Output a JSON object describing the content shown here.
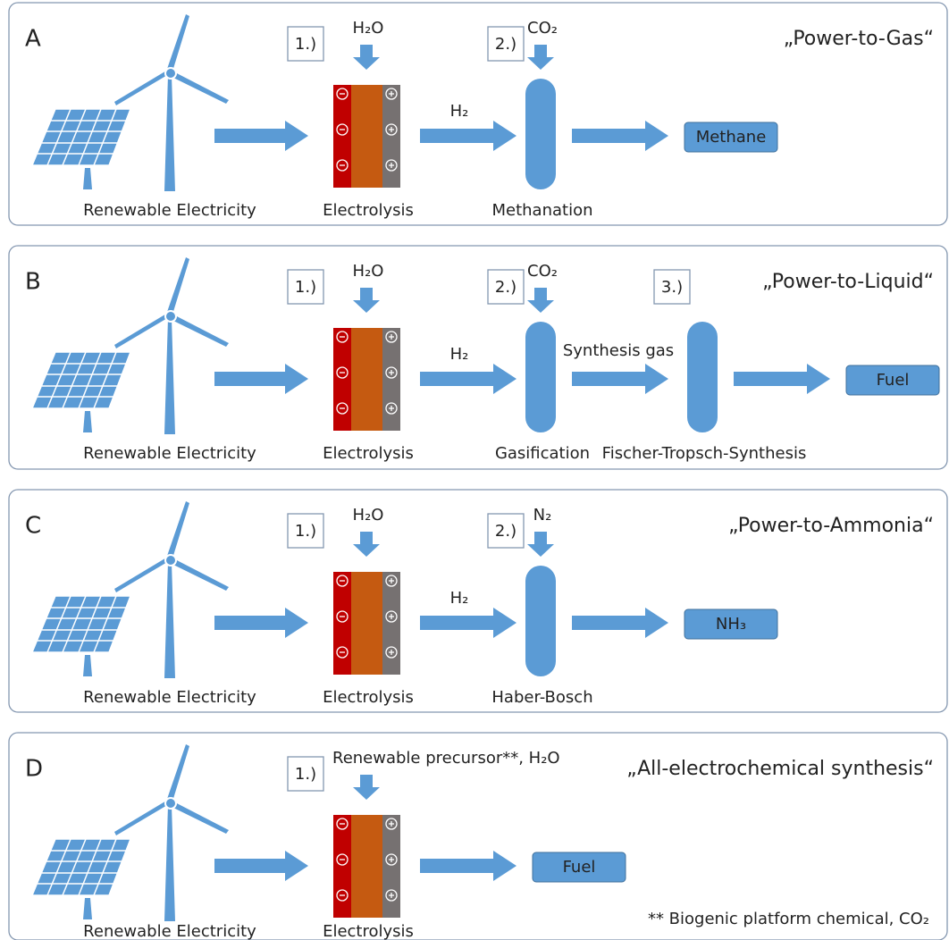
{
  "panels": [
    {
      "letter": "A",
      "title": "„Power-to-Gas“",
      "source": "Renewable Electricity",
      "steps": [
        {
          "number": "1.)",
          "input": "H₂O",
          "label": "Electrolysis"
        },
        {
          "number": "2.)",
          "input": "CO₂",
          "label": "Methanation"
        }
      ],
      "streams": [
        "H₂"
      ],
      "product": "Methane"
    },
    {
      "letter": "B",
      "title": "„Power-to-Liquid“",
      "source": "Renewable Electricity",
      "steps": [
        {
          "number": "1.)",
          "input": "H₂O",
          "label": "Electrolysis"
        },
        {
          "number": "2.)",
          "input": "CO₂",
          "label": "Gasification"
        },
        {
          "number": "3.)",
          "label": "Fischer-Tropsch-Synthesis"
        }
      ],
      "streams": [
        "H₂",
        "Synthesis gas"
      ],
      "product": "Fuel"
    },
    {
      "letter": "C",
      "title": "„Power-to-Ammonia“",
      "source": "Renewable Electricity",
      "steps": [
        {
          "number": "1.)",
          "input": "H₂O",
          "label": "Electrolysis"
        },
        {
          "number": "2.)",
          "input": "N₂",
          "label": "Haber-Bosch"
        }
      ],
      "streams": [
        "H₂"
      ],
      "product": "NH₃"
    },
    {
      "letter": "D",
      "title": "„All-electrochemical synthesis“",
      "source": "Renewable Electricity",
      "steps": [
        {
          "number": "1.)",
          "input": "Renewable precursor**, H₂O",
          "label": "Electrolysis"
        }
      ],
      "streams": [],
      "product": "Fuel",
      "footnote": "** Biogenic platform chemical, CO₂"
    }
  ]
}
